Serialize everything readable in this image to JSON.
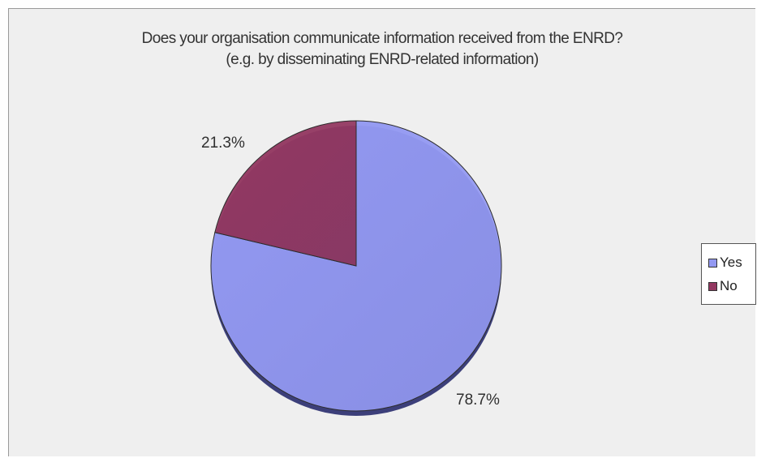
{
  "chart_data": {
    "type": "pie",
    "title": "Does your organisation communicate information received from the ENRD?",
    "subtitle": "(e.g. by disseminating ENRD-related information)",
    "slices": [
      {
        "label": "Yes",
        "value": 78.7,
        "display": "78.7%",
        "color": "#9399f2"
      },
      {
        "label": "No",
        "value": 21.3,
        "display": "21.3%",
        "color": "#933861"
      }
    ],
    "legend": {
      "position": "right",
      "items": [
        "Yes",
        "No"
      ]
    }
  }
}
